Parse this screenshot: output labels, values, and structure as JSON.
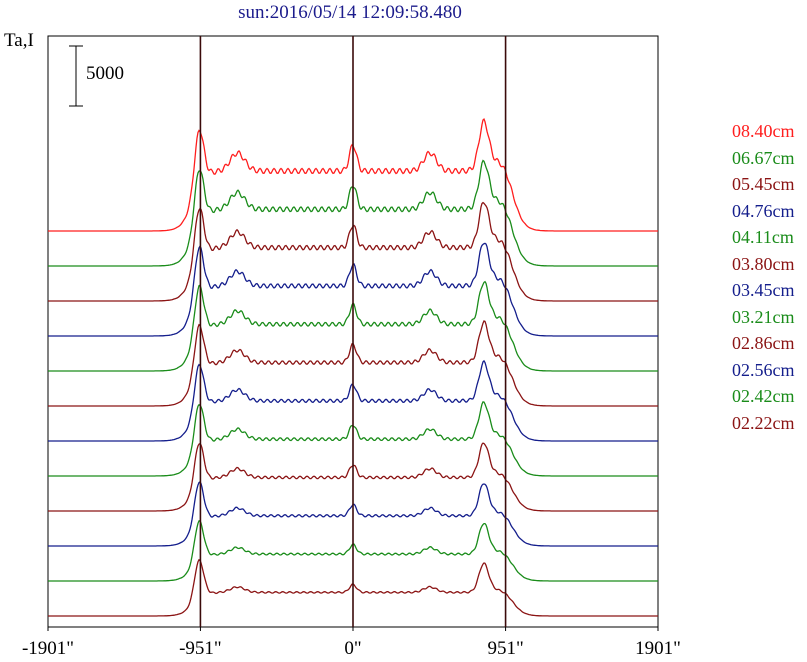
{
  "chart_data": {
    "type": "line",
    "title": "sun:2016/05/14 12:09:58.480",
    "ylabel": "Ta,I",
    "scale_bar_label": "5000",
    "xlim": [
      -1901,
      1901
    ],
    "xticks": [
      -1901,
      -951,
      0,
      951,
      1901
    ],
    "xtick_labels": [
      "-1901\"",
      "-951\"",
      "0\"",
      "951\"",
      "1901\""
    ],
    "vertical_markers": [
      -951,
      0,
      951
    ],
    "series": [
      {
        "name": "08.40cm",
        "color": "#ff1e1e"
      },
      {
        "name": "06.67cm",
        "color": "#1a8c1a"
      },
      {
        "name": "05.45cm",
        "color": "#8b1414"
      },
      {
        "name": "04.76cm",
        "color": "#141e8c"
      },
      {
        "name": "04.11cm",
        "color": "#1a8c1a"
      },
      {
        "name": "03.80cm",
        "color": "#8b1414"
      },
      {
        "name": "03.45cm",
        "color": "#141e8c"
      },
      {
        "name": "03.21cm",
        "color": "#1a8c1a"
      },
      {
        "name": "02.86cm",
        "color": "#8b1414"
      },
      {
        "name": "02.56cm",
        "color": "#141e8c"
      },
      {
        "name": "02.42cm",
        "color": "#1a8c1a"
      },
      {
        "name": "02.22cm",
        "color": "#8b1414"
      }
    ]
  }
}
